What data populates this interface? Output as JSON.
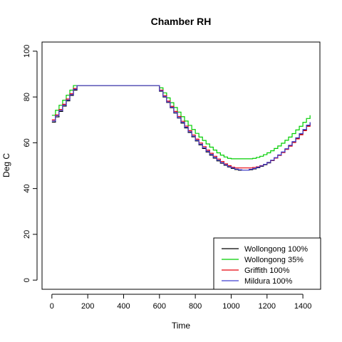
{
  "chart_data": {
    "type": "line",
    "title": "Chamber RH",
    "xlabel": "Time",
    "ylabel": "Deg C",
    "xlim": [
      -55,
      1495
    ],
    "ylim": [
      -4,
      104
    ],
    "x_ticks": [
      "0",
      "200",
      "400",
      "600",
      "800",
      "1000",
      "1200",
      "1400"
    ],
    "y_ticks": [
      "0",
      "20",
      "40",
      "60",
      "80",
      "100"
    ],
    "grid": false,
    "legend_position": "bottom-right",
    "step": true,
    "series": [
      {
        "name": "Wollongong 100%",
        "color": "#000000",
        "x": [
          0,
          20,
          40,
          60,
          80,
          100,
          120,
          140,
          200,
          300,
          400,
          500,
          580,
          600,
          620,
          640,
          660,
          680,
          700,
          720,
          740,
          760,
          780,
          800,
          820,
          840,
          860,
          880,
          900,
          920,
          940,
          960,
          980,
          1000,
          1020,
          1040,
          1060,
          1080,
          1100,
          1120,
          1140,
          1160,
          1180,
          1200,
          1220,
          1240,
          1260,
          1280,
          1300,
          1320,
          1340,
          1360,
          1380,
          1400,
          1420,
          1440
        ],
        "values": [
          69,
          71.3,
          73.7,
          76,
          78.3,
          80.7,
          83,
          85,
          85,
          85,
          85,
          85,
          85,
          82.5,
          80,
          77.6,
          75.3,
          73,
          70.8,
          68.6,
          66.5,
          64.5,
          62.6,
          60.8,
          59.1,
          57.5,
          56,
          54.6,
          53.3,
          52.1,
          51.1,
          50.2,
          49.4,
          48.8,
          48.3,
          48,
          48,
          48,
          48.2,
          48.6,
          49.1,
          49.7,
          50.4,
          51.2,
          52.2,
          53.3,
          54.5,
          55.8,
          57.2,
          58.7,
          60.3,
          62,
          63.8,
          65.6,
          67.5,
          69
        ]
      },
      {
        "name": "Wollongong 35%",
        "color": "#00CD00",
        "x": [
          0,
          20,
          40,
          60,
          80,
          100,
          120,
          140,
          200,
          300,
          400,
          500,
          590,
          600,
          620,
          640,
          660,
          680,
          700,
          720,
          740,
          760,
          780,
          800,
          820,
          840,
          860,
          880,
          900,
          920,
          940,
          960,
          980,
          1000,
          1020,
          1040,
          1060,
          1080,
          1100,
          1120,
          1140,
          1160,
          1180,
          1200,
          1220,
          1240,
          1260,
          1280,
          1300,
          1320,
          1340,
          1360,
          1380,
          1400,
          1420,
          1440
        ],
        "values": [
          72,
          74.2,
          76.4,
          78.6,
          80.8,
          83,
          85,
          85,
          85,
          85,
          85,
          85,
          85,
          84,
          81.8,
          79.6,
          77.5,
          75.4,
          73.4,
          71.4,
          69.5,
          67.6,
          65.8,
          64.1,
          62.5,
          61,
          59.5,
          58.1,
          56.8,
          55.6,
          54.6,
          53.8,
          53.2,
          53,
          53,
          53,
          53,
          53,
          53,
          53.2,
          53.6,
          54.1,
          54.8,
          55.6,
          56.5,
          57.5,
          58.6,
          59.8,
          61.1,
          62.5,
          64,
          65.6,
          67.2,
          68.9,
          70.6,
          72
        ]
      },
      {
        "name": "Griffith 100%",
        "color": "#E8000B",
        "x": [
          0,
          20,
          40,
          60,
          80,
          100,
          120,
          140,
          200,
          300,
          400,
          500,
          580,
          600,
          620,
          640,
          660,
          680,
          700,
          720,
          740,
          760,
          780,
          800,
          820,
          840,
          860,
          880,
          900,
          920,
          940,
          960,
          980,
          1000,
          1020,
          1040,
          1060,
          1080,
          1100,
          1120,
          1140,
          1160,
          1180,
          1200,
          1220,
          1240,
          1260,
          1280,
          1300,
          1320,
          1340,
          1360,
          1380,
          1400,
          1420,
          1440
        ],
        "values": [
          70,
          72.2,
          74.5,
          76.8,
          79.1,
          81.4,
          83.7,
          85,
          85,
          85,
          85,
          85,
          85,
          83,
          80.6,
          78.2,
          75.9,
          73.7,
          71.5,
          69.4,
          67.3,
          65.3,
          63.4,
          61.6,
          59.9,
          58.3,
          56.8,
          55.4,
          54.1,
          52.9,
          51.8,
          50.8,
          50,
          49.3,
          49,
          49,
          49,
          49,
          49,
          49.2,
          49.5,
          50,
          50.6,
          51.4,
          52.3,
          53.3,
          54.5,
          55.7,
          57.1,
          58.5,
          60.1,
          61.7,
          63.5,
          65.3,
          67.2,
          68.5
        ]
      },
      {
        "name": "Mildura 100%",
        "color": "#4040D0",
        "x": [
          0,
          20,
          40,
          60,
          80,
          100,
          120,
          140,
          200,
          300,
          400,
          500,
          580,
          600,
          620,
          640,
          660,
          680,
          700,
          720,
          740,
          760,
          780,
          800,
          820,
          840,
          860,
          880,
          900,
          920,
          940,
          960,
          980,
          1000,
          1020,
          1040,
          1060,
          1080,
          1100,
          1120,
          1140,
          1160,
          1180,
          1200,
          1220,
          1240,
          1260,
          1280,
          1300,
          1320,
          1340,
          1360,
          1380,
          1400,
          1420,
          1440
        ],
        "values": [
          69.5,
          71.8,
          74.1,
          76.4,
          78.7,
          81,
          83.3,
          85,
          85,
          85,
          85,
          85,
          85,
          82.7,
          80.2,
          77.8,
          75.5,
          73.2,
          71,
          68.9,
          66.8,
          64.8,
          62.9,
          61.1,
          59.4,
          57.8,
          56.3,
          54.9,
          53.6,
          52.4,
          51.3,
          50.4,
          49.6,
          49,
          48.5,
          48.2,
          48,
          48,
          48.4,
          48.8,
          49.3,
          49.9,
          50.6,
          51.4,
          52.4,
          53.5,
          54.7,
          56,
          57.4,
          58.9,
          60.5,
          62.2,
          64,
          65.8,
          67.7,
          69
        ]
      }
    ]
  }
}
